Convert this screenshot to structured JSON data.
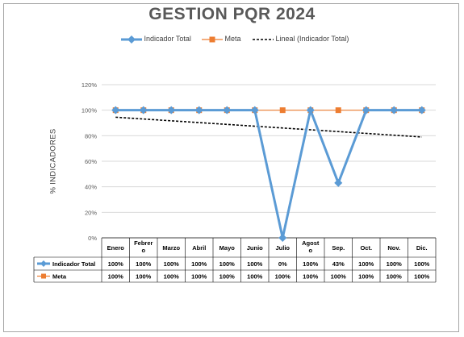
{
  "chart_data": {
    "type": "line",
    "title": "GESTION PQR 2024",
    "ylabel": "% INDICADORES",
    "ylim": [
      0,
      120
    ],
    "yticks": [
      "0%",
      "20%",
      "40%",
      "60%",
      "80%",
      "100%",
      "120%"
    ],
    "grid": true,
    "legend_position": "top",
    "categories": [
      "Enero",
      "Febrer o",
      "Marzo",
      "Abril",
      "Mayo",
      "Junio",
      "Julio",
      "Agost o",
      "Sep.",
      "Oct.",
      "Nov.",
      "Dic."
    ],
    "series": [
      {
        "name": "Indicador Total",
        "color": "#5b9bd5",
        "marker": "diamond",
        "values": [
          100,
          100,
          100,
          100,
          100,
          100,
          0,
          100,
          43,
          100,
          100,
          100
        ],
        "labels": [
          "100%",
          "100%",
          "100%",
          "100%",
          "100%",
          "100%",
          "0%",
          "100%",
          "43%",
          "100%",
          "100%",
          "100%"
        ]
      },
      {
        "name": "Meta",
        "color": "#ed7d31",
        "marker": "square",
        "values": [
          100,
          100,
          100,
          100,
          100,
          100,
          100,
          100,
          100,
          100,
          100,
          100
        ],
        "labels": [
          "100%",
          "100%",
          "100%",
          "100%",
          "100%",
          "100%",
          "100%",
          "100%",
          "100%",
          "100%",
          "100%",
          "100%"
        ]
      }
    ],
    "trendline": {
      "name": "Lineal (Indicador Total)",
      "color": "#000000",
      "style": "dashed",
      "start": 94.5,
      "end": 79
    }
  }
}
